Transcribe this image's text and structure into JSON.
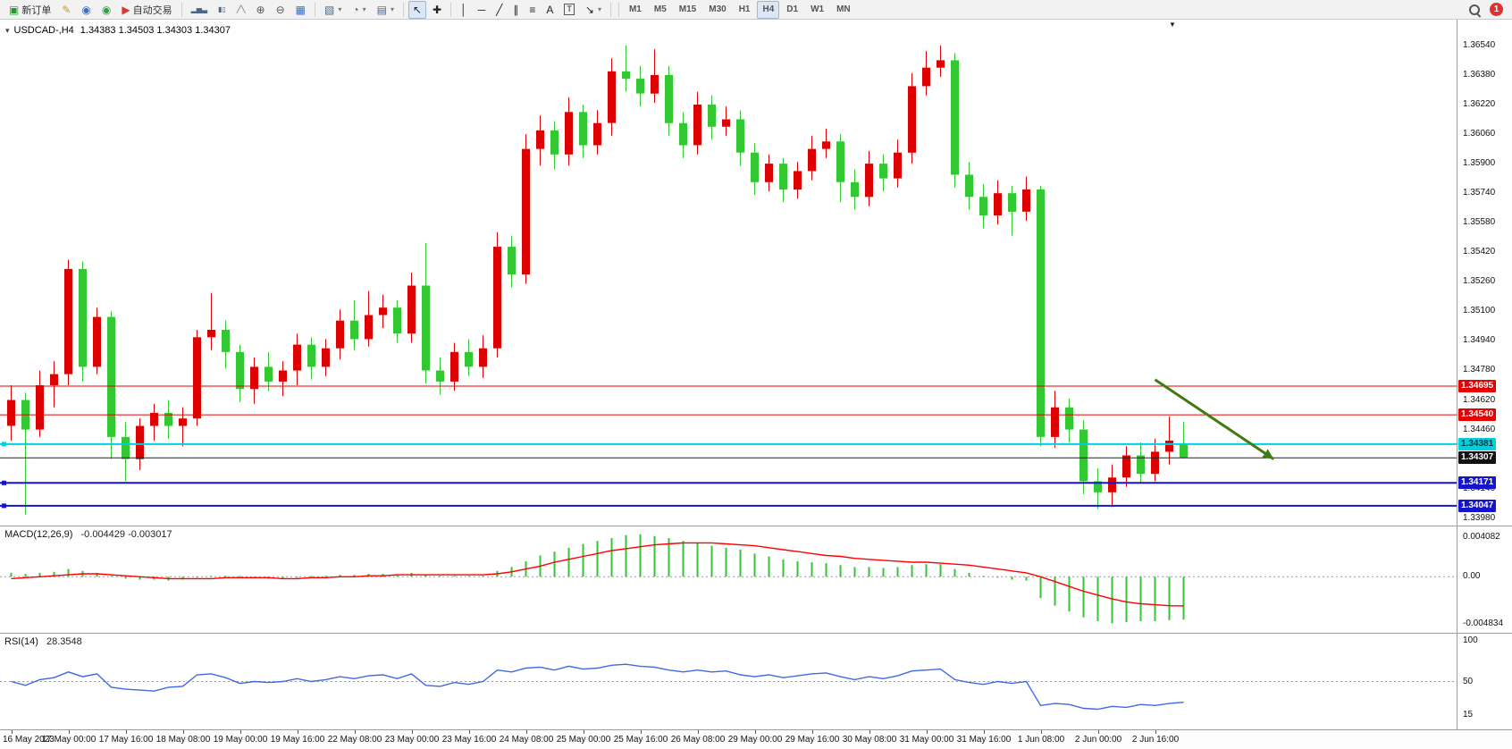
{
  "toolbar": {
    "items": [
      {
        "type": "btn",
        "name": "new-order-button",
        "glyph": "▣",
        "glyph_color": "#1f9d1f",
        "label": "新订单"
      },
      {
        "type": "btn",
        "name": "mql-editor-button",
        "glyph": "✎",
        "glyph_color": "#c99a10"
      },
      {
        "type": "btn",
        "name": "profiles-button",
        "glyph": "◉",
        "glyph_color": "#3b6fc4"
      },
      {
        "type": "btn",
        "name": "community-button",
        "glyph": "◉",
        "glyph_color": "#2f9e44"
      },
      {
        "type": "btn",
        "name": "autotrading-button",
        "glyph": "▶",
        "glyph_color": "#d43a2f",
        "label": "自动交易"
      },
      {
        "type": "sep"
      },
      {
        "type": "btn",
        "name": "bar-chart-button",
        "glyph": "▂▅▃",
        "glyph_color": "#4a6785",
        "small": true
      },
      {
        "type": "btn",
        "name": "candle-chart-button",
        "glyph": "▮▯",
        "glyph_color": "#4a6785",
        "small": true
      },
      {
        "type": "btn",
        "name": "line-chart-button",
        "glyph": "╱╲",
        "glyph_color": "#4a6785",
        "small": true
      },
      {
        "type": "btn",
        "name": "zoom-in-button",
        "glyph": "⊕",
        "glyph_color": "#555555"
      },
      {
        "type": "btn",
        "name": "zoom-out-button",
        "glyph": "⊖",
        "glyph_color": "#555555"
      },
      {
        "type": "btn",
        "name": "tile-windows-button",
        "glyph": "▦",
        "glyph_color": "#3b6fc4"
      },
      {
        "type": "sep"
      },
      {
        "type": "btn",
        "name": "new-chart-button",
        "glyph": "▧",
        "glyph_color": "#4a6785",
        "dropdown": true
      },
      {
        "type": "btn",
        "name": "period-button",
        "glyph": "◔",
        "glyph_color": "#4a6785",
        "dropdown": true
      },
      {
        "type": "btn",
        "name": "template-button",
        "glyph": "▤",
        "glyph_color": "#4a6785",
        "dropdown": true
      },
      {
        "type": "sep"
      },
      {
        "type": "btn",
        "name": "cursor-button",
        "glyph": "↖",
        "glyph_color": "#222222",
        "active": true
      },
      {
        "type": "btn",
        "name": "crosshair-button",
        "glyph": "✚",
        "glyph_color": "#222222"
      },
      {
        "type": "sep"
      },
      {
        "type": "btn",
        "name": "vertical-line-button",
        "glyph": "│",
        "glyph_color": "#222222"
      },
      {
        "type": "btn",
        "name": "horizontal-line-button",
        "glyph": "─",
        "glyph_color": "#222222"
      },
      {
        "type": "btn",
        "name": "trendline-button",
        "glyph": "╱",
        "glyph_color": "#222222"
      },
      {
        "type": "btn",
        "name": "channel-button",
        "glyph": "∥",
        "glyph_color": "#222222"
      },
      {
        "type": "btn",
        "name": "fibonacci-button",
        "glyph": "≡",
        "glyph_color": "#222222"
      },
      {
        "type": "btn",
        "name": "text-button",
        "glyph": "A",
        "glyph_color": "#222222"
      },
      {
        "type": "btn",
        "name": "label-button",
        "glyph": "T",
        "glyph_color": "#222222",
        "boxed": true
      },
      {
        "type": "btn",
        "name": "arrows-button",
        "glyph": "↘",
        "glyph_color": "#222222",
        "dropdown": true
      },
      {
        "type": "sep"
      }
    ],
    "timeframes": [
      "M1",
      "M5",
      "M15",
      "M30",
      "H1",
      "H4",
      "D1",
      "W1",
      "MN"
    ],
    "active_timeframe": "H4",
    "notification_badge": "1"
  },
  "chart": {
    "title": "USDCAD-,H4",
    "ohlc_text": "1.34383 1.34503 1.34303 1.34307",
    "price_axis_labels": [
      "1.36540",
      "1.36380",
      "1.36220",
      "1.36060",
      "1.35900",
      "1.35740",
      "1.35580",
      "1.35420",
      "1.35260",
      "1.35100",
      "1.34940",
      "1.34780",
      "1.34620",
      "1.34460",
      "1.34300",
      "1.34140",
      "1.33980"
    ],
    "levels": [
      {
        "price": 1.34695,
        "label": "1.34695",
        "color": "#e60000",
        "badge_bg": "#e60000",
        "badge_text": "#ffffff",
        "width": 1
      },
      {
        "price": 1.3454,
        "label": "1.34540",
        "color": "#e60000",
        "badge_bg": "#e60000",
        "badge_text": "#ffffff",
        "width": 1
      },
      {
        "price": 1.34381,
        "label": "1.34381",
        "color": "#00cfe0",
        "badge_bg": "#00cfe0",
        "badge_text": "#073a3e",
        "width": 2,
        "handle": true
      },
      {
        "price": 1.34307,
        "label": "1.34307",
        "color": "#222222",
        "badge_bg": "#111111",
        "badge_text": "#ffffff",
        "width": 1,
        "current": true
      },
      {
        "price": 1.34171,
        "label": "1.34171",
        "color": "#1414cc",
        "badge_bg": "#1414cc",
        "badge_text": "#ffffff",
        "width": 2,
        "handle": true
      },
      {
        "price": 1.34047,
        "label": "1.34047",
        "color": "#1414cc",
        "badge_bg": "#1414cc",
        "badge_text": "#ffffff",
        "width": 2,
        "handle": true
      }
    ],
    "arrow": {
      "from_bar": 80,
      "from_price": 1.3473,
      "to_bar": 88.3,
      "to_price": 1.343,
      "color": "#3e7c0f"
    },
    "colors": {
      "bull": "#dd0000",
      "bear": "#32c832",
      "macd": "#32c832",
      "signal": "#ff0000",
      "rsi": "#4169e1"
    }
  },
  "indicators": {
    "macd": {
      "label": "MACD(12,26,9)",
      "values_text": "-0.004429 -0.003017",
      "axis": [
        "0.004082",
        "0.00",
        "-0.004834"
      ]
    },
    "rsi": {
      "label": "RSI(14)",
      "value_text": "28.3548",
      "axis": [
        "100",
        "50",
        "15"
      ]
    }
  },
  "time_axis": [
    "16 May 2023",
    "17 May 00:00",
    "17 May 16:00",
    "18 May 08:00",
    "19 May 00:00",
    "19 May 16:00",
    "22 May 08:00",
    "23 May 00:00",
    "23 May 16:00",
    "24 May 08:00",
    "25 May 00:00",
    "25 May 16:00",
    "26 May 08:00",
    "29 May 00:00",
    "29 May 16:00",
    "30 May 08:00",
    "31 May 00:00",
    "31 May 16:00",
    "1 Jun 08:00",
    "2 Jun 00:00",
    "2 Jun 16:00"
  ],
  "chart_data": {
    "type": "candlestick",
    "symbol": "USDCAD",
    "period": "H4",
    "price_range": [
      1.3394,
      1.3668
    ],
    "macd_range": [
      -0.0058,
      0.0052
    ],
    "rsi_range": [
      0,
      100
    ],
    "candles": [
      [
        1.3448,
        1.347,
        1.344,
        1.3462
      ],
      [
        1.3462,
        1.3466,
        1.34,
        1.3446
      ],
      [
        1.3446,
        1.3478,
        1.3442,
        1.347
      ],
      [
        1.347,
        1.3483,
        1.3458,
        1.3476
      ],
      [
        1.3476,
        1.3538,
        1.347,
        1.3533
      ],
      [
        1.3533,
        1.3537,
        1.3472,
        1.348
      ],
      [
        1.348,
        1.3512,
        1.3476,
        1.3507
      ],
      [
        1.3507,
        1.351,
        1.343,
        1.3442
      ],
      [
        1.3442,
        1.345,
        1.3418,
        1.343
      ],
      [
        1.343,
        1.3452,
        1.3424,
        1.3448
      ],
      [
        1.3448,
        1.346,
        1.344,
        1.3455
      ],
      [
        1.3455,
        1.3462,
        1.3441,
        1.3448
      ],
      [
        1.3448,
        1.3458,
        1.3437,
        1.3452
      ],
      [
        1.3452,
        1.35,
        1.3448,
        1.3496
      ],
      [
        1.3496,
        1.352,
        1.3489,
        1.35
      ],
      [
        1.35,
        1.3505,
        1.3479,
        1.3488
      ],
      [
        1.3488,
        1.3492,
        1.3461,
        1.3468
      ],
      [
        1.3468,
        1.3485,
        1.346,
        1.348
      ],
      [
        1.348,
        1.3488,
        1.3467,
        1.3472
      ],
      [
        1.3472,
        1.3483,
        1.3464,
        1.3478
      ],
      [
        1.3478,
        1.3498,
        1.347,
        1.3492
      ],
      [
        1.3492,
        1.3496,
        1.3473,
        1.348
      ],
      [
        1.348,
        1.3495,
        1.3475,
        1.349
      ],
      [
        1.349,
        1.3511,
        1.3484,
        1.3505
      ],
      [
        1.3505,
        1.3516,
        1.3489,
        1.3495
      ],
      [
        1.3495,
        1.3521,
        1.3491,
        1.3508
      ],
      [
        1.3508,
        1.3519,
        1.3501,
        1.3512
      ],
      [
        1.3512,
        1.3516,
        1.3493,
        1.3498
      ],
      [
        1.3498,
        1.3531,
        1.3493,
        1.3524
      ],
      [
        1.3524,
        1.3547,
        1.3471,
        1.3478
      ],
      [
        1.3478,
        1.3485,
        1.3465,
        1.3472
      ],
      [
        1.3472,
        1.3493,
        1.3467,
        1.3488
      ],
      [
        1.3488,
        1.3495,
        1.3475,
        1.348
      ],
      [
        1.348,
        1.3497,
        1.3474,
        1.349
      ],
      [
        1.349,
        1.3553,
        1.3485,
        1.3545
      ],
      [
        1.3545,
        1.3551,
        1.3523,
        1.353
      ],
      [
        1.353,
        1.3606,
        1.3525,
        1.3598
      ],
      [
        1.3598,
        1.3616,
        1.3589,
        1.3608
      ],
      [
        1.3608,
        1.3613,
        1.3587,
        1.3595
      ],
      [
        1.3595,
        1.3626,
        1.3589,
        1.3618
      ],
      [
        1.3618,
        1.3622,
        1.3593,
        1.36
      ],
      [
        1.36,
        1.3619,
        1.3595,
        1.3612
      ],
      [
        1.3612,
        1.3647,
        1.3605,
        1.364
      ],
      [
        1.364,
        1.3654,
        1.3629,
        1.3636
      ],
      [
        1.3636,
        1.3643,
        1.3621,
        1.3628
      ],
      [
        1.3628,
        1.3652,
        1.3623,
        1.3638
      ],
      [
        1.3638,
        1.3643,
        1.3605,
        1.3612
      ],
      [
        1.3612,
        1.3618,
        1.3593,
        1.36
      ],
      [
        1.36,
        1.3629,
        1.3595,
        1.3622
      ],
      [
        1.3622,
        1.3627,
        1.3603,
        1.361
      ],
      [
        1.361,
        1.3621,
        1.3605,
        1.3614
      ],
      [
        1.3614,
        1.3619,
        1.3589,
        1.3596
      ],
      [
        1.3596,
        1.3601,
        1.3573,
        1.358
      ],
      [
        1.358,
        1.3595,
        1.3575,
        1.359
      ],
      [
        1.359,
        1.3593,
        1.3569,
        1.3576
      ],
      [
        1.3576,
        1.3591,
        1.3571,
        1.3586
      ],
      [
        1.3586,
        1.3605,
        1.3581,
        1.3598
      ],
      [
        1.3598,
        1.3609,
        1.3593,
        1.3602
      ],
      [
        1.3602,
        1.3606,
        1.3569,
        1.358
      ],
      [
        1.358,
        1.3587,
        1.3565,
        1.3572
      ],
      [
        1.3572,
        1.3597,
        1.3567,
        1.359
      ],
      [
        1.359,
        1.3595,
        1.3575,
        1.3582
      ],
      [
        1.3582,
        1.3603,
        1.3577,
        1.3596
      ],
      [
        1.3596,
        1.3639,
        1.359,
        1.3632
      ],
      [
        1.3632,
        1.3651,
        1.3627,
        1.3642
      ],
      [
        1.3642,
        1.3654,
        1.3637,
        1.3646
      ],
      [
        1.3646,
        1.365,
        1.3577,
        1.3584
      ],
      [
        1.3584,
        1.3591,
        1.3565,
        1.3572
      ],
      [
        1.3572,
        1.3579,
        1.3555,
        1.3562
      ],
      [
        1.3562,
        1.3581,
        1.3557,
        1.3574
      ],
      [
        1.3574,
        1.3578,
        1.3551,
        1.3564
      ],
      [
        1.3564,
        1.3583,
        1.3559,
        1.3576
      ],
      [
        1.3576,
        1.3578,
        1.3437,
        1.3442
      ],
      [
        1.3442,
        1.3467,
        1.3436,
        1.3458
      ],
      [
        1.3458,
        1.3463,
        1.3439,
        1.3446
      ],
      [
        1.3446,
        1.3451,
        1.3411,
        1.3418
      ],
      [
        1.3418,
        1.3425,
        1.3403,
        1.3412
      ],
      [
        1.3412,
        1.3427,
        1.3405,
        1.342
      ],
      [
        1.342,
        1.3437,
        1.3415,
        1.3432
      ],
      [
        1.3432,
        1.3439,
        1.3417,
        1.3422
      ],
      [
        1.3422,
        1.3441,
        1.3418,
        1.3434
      ],
      [
        1.3434,
        1.3453,
        1.3427,
        1.344
      ],
      [
        1.34383,
        1.34503,
        1.34303,
        1.34307
      ]
    ],
    "macd_histogram": [
      0.0004,
      0.0003,
      0.0004,
      0.0005,
      0.0008,
      0.0006,
      0.0004,
      0.0001,
      -0.0002,
      -0.0003,
      -0.0003,
      -0.0004,
      -0.0003,
      -0.0001,
      0.0001,
      0.0001,
      0.0,
      -0.0001,
      -0.0002,
      -0.0002,
      -0.0001,
      0.0,
      0.0001,
      0.0002,
      0.0002,
      0.0003,
      0.0003,
      0.0002,
      0.0004,
      0.0002,
      0.0001,
      0.0001,
      0.0,
      0.0001,
      0.0006,
      0.001,
      0.0016,
      0.0022,
      0.0026,
      0.003,
      0.0034,
      0.0037,
      0.004,
      0.0043,
      0.0044,
      0.0042,
      0.004,
      0.0037,
      0.0035,
      0.0032,
      0.003,
      0.0028,
      0.0024,
      0.0021,
      0.0018,
      0.0016,
      0.0015,
      0.0014,
      0.0012,
      0.001,
      0.001,
      0.0009,
      0.001,
      0.0012,
      0.0013,
      0.0013,
      0.0008,
      0.0004,
      0.0001,
      -0.0001,
      -0.0003,
      -0.0004,
      -0.0022,
      -0.003,
      -0.0036,
      -0.0042,
      -0.0046,
      -0.00483,
      -0.0047,
      -0.0046,
      -0.0046,
      -0.0045,
      -0.004429
    ],
    "macd_signal": [
      -0.0002,
      -0.0001,
      0.0,
      0.0001,
      0.0002,
      0.0003,
      0.0003,
      0.0002,
      0.0001,
      0.0,
      -0.0001,
      -0.0002,
      -0.0002,
      -0.0002,
      -0.0002,
      -0.0001,
      -0.0001,
      -0.0001,
      -0.0001,
      -0.0002,
      -0.0002,
      -0.0001,
      -0.0001,
      0.0,
      0.0,
      0.0001,
      0.0001,
      0.0002,
      0.0002,
      0.0002,
      0.0002,
      0.0002,
      0.0002,
      0.0002,
      0.0003,
      0.0005,
      0.0008,
      0.0011,
      0.0015,
      0.0018,
      0.0021,
      0.0024,
      0.0027,
      0.0029,
      0.0031,
      0.0033,
      0.0034,
      0.0035,
      0.0035,
      0.0035,
      0.0034,
      0.0033,
      0.0032,
      0.003,
      0.0028,
      0.0026,
      0.0024,
      0.0022,
      0.0021,
      0.0019,
      0.0018,
      0.0017,
      0.0016,
      0.0015,
      0.0015,
      0.0014,
      0.0013,
      0.0012,
      0.001,
      0.0008,
      0.0006,
      0.0004,
      0.0,
      -0.0005,
      -0.001,
      -0.0015,
      -0.0019,
      -0.0023,
      -0.0026,
      -0.0028,
      -0.0029,
      -0.003,
      -0.003017
    ],
    "rsi": [
      50,
      46,
      52,
      54,
      60,
      55,
      58,
      44,
      42,
      41,
      40,
      44,
      45,
      57,
      58,
      54,
      48,
      50,
      49,
      50,
      53,
      50,
      52,
      55,
      53,
      56,
      57,
      53,
      58,
      46,
      45,
      49,
      47,
      50,
      62,
      60,
      64,
      65,
      62,
      66,
      63,
      64,
      67,
      68,
      66,
      65,
      62,
      60,
      62,
      60,
      61,
      57,
      55,
      57,
      54,
      56,
      58,
      59,
      55,
      52,
      55,
      53,
      56,
      61,
      62,
      63,
      52,
      49,
      47,
      50,
      48,
      50,
      25,
      27,
      26,
      22,
      21,
      24,
      23,
      26,
      25,
      27,
      28.35
    ]
  }
}
